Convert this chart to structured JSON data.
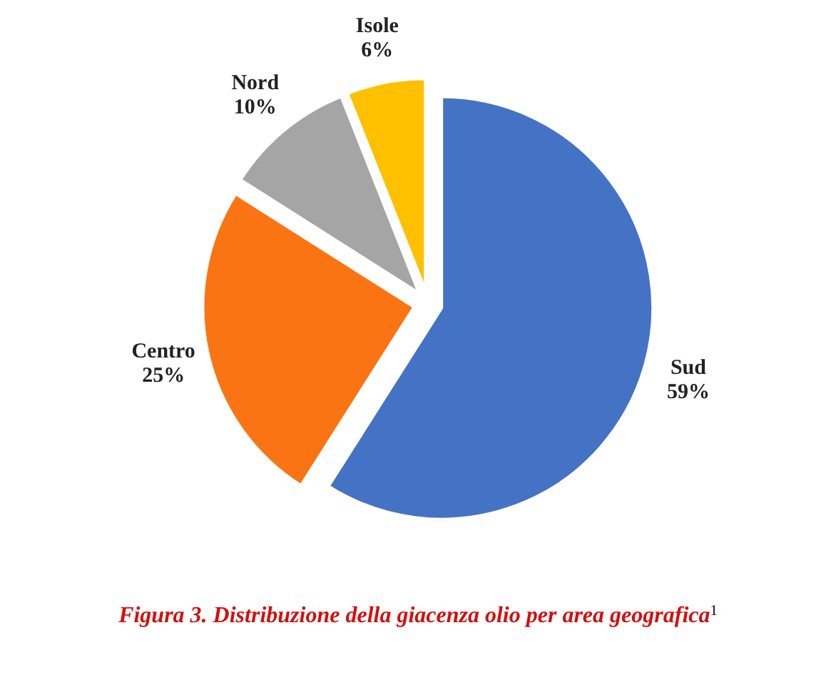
{
  "chart_data": {
    "type": "pie",
    "title": "Figura 3. Distribuzione della giacenza olio per area geografica$^{1}$",
    "categories": [
      "Sud",
      "Centro",
      "Nord",
      "Isole"
    ],
    "values": [
      59,
      25,
      10,
      6
    ],
    "value_labels": [
      "59%",
      "25%",
      "10%",
      "6%"
    ],
    "colors": [
      "#4472c4",
      "#fb7413",
      "#a5a5a5",
      "#ffc000"
    ]
  }
}
